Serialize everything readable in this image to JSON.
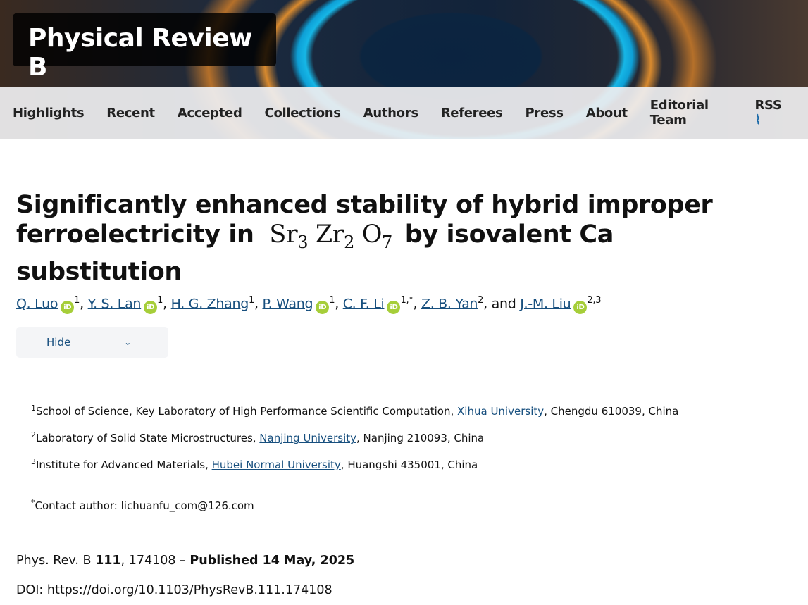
{
  "header": {
    "journal": "Physical Review B"
  },
  "nav": {
    "items": [
      "Highlights",
      "Recent",
      "Accepted",
      "Collections",
      "Authors",
      "Referees",
      "Press",
      "About",
      "Editorial Team",
      "RSS"
    ]
  },
  "article": {
    "title_part1": "Significantly enhanced stability of hybrid improper ferroelectricity in",
    "formula": {
      "sr": "Sr",
      "sr_n": "3",
      "zr": "Zr",
      "zr_n": "2",
      "o": "O",
      "o_n": "7"
    },
    "title_part2": "by isovalent Ca substitution",
    "authors": [
      {
        "name": "Q. Luo",
        "orcid": true,
        "aff": "1"
      },
      {
        "name": "Y. S. Lan",
        "orcid": true,
        "aff": "1"
      },
      {
        "name": "H. G. Zhang",
        "orcid": false,
        "aff": "1"
      },
      {
        "name": "P. Wang",
        "orcid": true,
        "aff": "1"
      },
      {
        "name": "C. F. Li",
        "orcid": true,
        "aff": "1,*"
      },
      {
        "name": "Z. B. Yan",
        "orcid": false,
        "aff": "2"
      },
      {
        "name": "J.-M. Liu",
        "orcid": true,
        "aff": "2,3"
      }
    ],
    "and": "and",
    "orcid_label": "iD",
    "hide_label": "Hide",
    "affiliations": [
      {
        "num": "1",
        "pre": "School of Science, Key Laboratory of High Performance Scientific Computation, ",
        "link": "Xihua University",
        "post": ", Chengdu 610039, China"
      },
      {
        "num": "2",
        "pre": "Laboratory of Solid State Microstructures, ",
        "link": "Nanjing University",
        "post": ", Nanjing 210093, China"
      },
      {
        "num": "3",
        "pre": "Institute for Advanced Materials, ",
        "link": "Hubei Normal University",
        "post": ", Huangshi 435001, China"
      }
    ],
    "contact": {
      "mark": "*",
      "text": "Contact author: lichuanfu_com@126.com"
    },
    "citation": {
      "journal": "Phys. Rev. B ",
      "volume": "111",
      "article": ", 174108 – ",
      "published": "Published 14 May, 2025"
    },
    "doi": "DOI: https://doi.org/10.1103/PhysRevB.111.174108"
  }
}
